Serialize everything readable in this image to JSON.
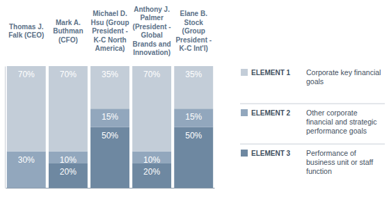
{
  "chart_data": {
    "type": "bar",
    "stacked": true,
    "data_labels": true,
    "tick_labels": false,
    "grid": false,
    "legend": "right",
    "categories": [
      "Thomas J. Falk (CEO)",
      "Mark A. Buthman (CFO)",
      "Michael D. Hsu (Group President - K-C North America)",
      "Anthony J. Palmer (President - Global Brands and Innovation)",
      "Elane B. Stock (Group President - K-C Int'l)"
    ],
    "ylim": [
      0,
      100
    ],
    "yticks": [],
    "series": [
      {
        "name": "ELEMENT 1",
        "description": "Corporate key financial goals",
        "color": "#c3cdd8",
        "values": [
          70,
          70,
          35,
          70,
          35
        ],
        "value_labels": [
          "70%",
          "70%",
          "35%",
          "70%",
          "35%"
        ]
      },
      {
        "name": "ELEMENT 2",
        "description": "Other corporate financial and strategic performance goals",
        "color": "#92a7bd",
        "values": [
          30,
          10,
          15,
          10,
          15
        ],
        "value_labels": [
          "30%",
          "10%",
          "15%",
          "10%",
          "15%"
        ]
      },
      {
        "name": "ELEMENT 3",
        "description": "Performance of business unit or staff function",
        "color": "#6e88a1",
        "values": [
          null,
          20,
          50,
          20,
          50
        ],
        "value_labels": [
          null,
          "20%",
          "50%",
          "20%",
          "50%"
        ]
      }
    ]
  }
}
